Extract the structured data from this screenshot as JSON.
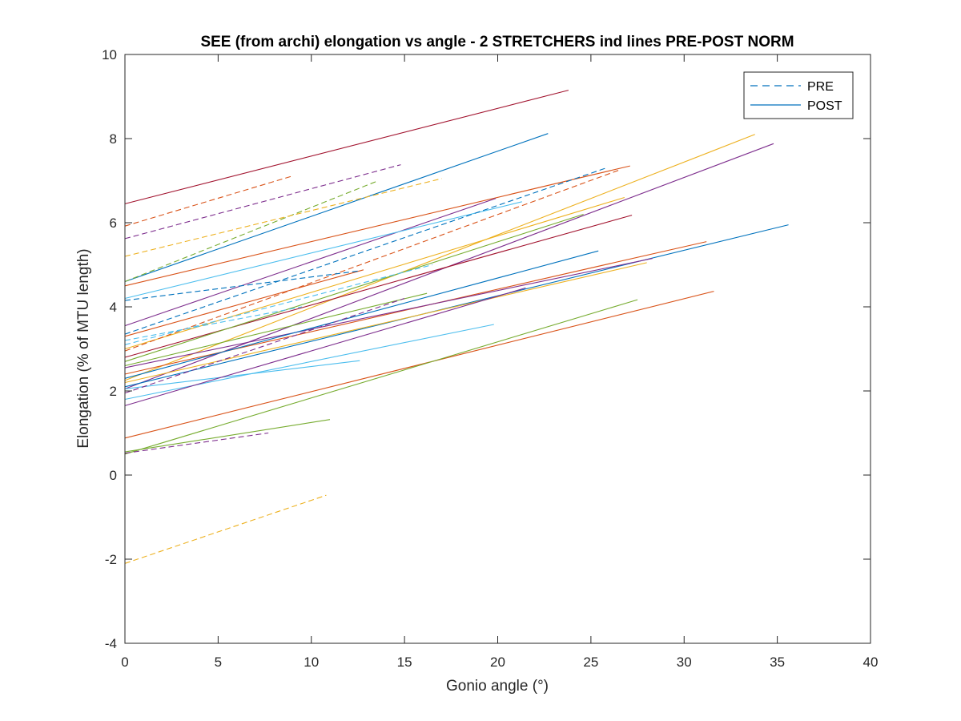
{
  "chart_data": {
    "type": "line",
    "title": "SEE (from archi) elongation vs angle - 2 STRETCHERS ind lines PRE-POST NORM",
    "xlabel": "Gonio angle (°)",
    "ylabel": "Elongation (% of MTU length)",
    "xlim": [
      0,
      40
    ],
    "ylim": [
      -4,
      10
    ],
    "xticks": [
      0,
      5,
      10,
      15,
      20,
      25,
      30,
      35,
      40
    ],
    "yticks": [
      -4,
      -2,
      0,
      2,
      4,
      6,
      8,
      10
    ],
    "grid": false,
    "legend": {
      "placement": "top-right",
      "entries": [
        {
          "label": "PRE",
          "style": "dashed",
          "color": "#0072bd"
        },
        {
          "label": "POST",
          "style": "solid",
          "color": "#0072bd"
        }
      ]
    },
    "series": [
      {
        "style": "solid",
        "color": "#a2142f",
        "x": [
          0,
          23.8
        ],
        "y": [
          6.45,
          9.15
        ]
      },
      {
        "style": "solid",
        "color": "#0072bd",
        "x": [
          0,
          22.7
        ],
        "y": [
          4.6,
          8.12
        ]
      },
      {
        "style": "solid",
        "color": "#edb120",
        "x": [
          0,
          33.8
        ],
        "y": [
          2.25,
          8.1
        ]
      },
      {
        "style": "solid",
        "color": "#7e2f8e",
        "x": [
          0,
          34.8
        ],
        "y": [
          2.05,
          7.88
        ]
      },
      {
        "style": "solid",
        "color": "#0072bd",
        "x": [
          0,
          35.6
        ],
        "y": [
          2.1,
          5.95
        ]
      },
      {
        "style": "solid",
        "color": "#d95319",
        "x": [
          0,
          31.6
        ],
        "y": [
          0.88,
          4.37
        ]
      },
      {
        "style": "solid",
        "color": "#77ac30",
        "x": [
          0,
          27.5
        ],
        "y": [
          0.5,
          4.17
        ]
      },
      {
        "style": "solid",
        "color": "#d95319",
        "x": [
          0,
          31.2
        ],
        "y": [
          2.4,
          5.55
        ]
      },
      {
        "style": "solid",
        "color": "#7e2f8e",
        "x": [
          0,
          28.3
        ],
        "y": [
          2.55,
          5.15
        ]
      },
      {
        "style": "solid",
        "color": "#edb120",
        "x": [
          0,
          28.0
        ],
        "y": [
          2.2,
          5.05
        ]
      },
      {
        "style": "solid",
        "color": "#d95319",
        "x": [
          0,
          27.1
        ],
        "y": [
          4.5,
          7.35
        ]
      },
      {
        "style": "solid",
        "color": "#a2142f",
        "x": [
          0,
          27.2
        ],
        "y": [
          2.8,
          6.18
        ]
      },
      {
        "style": "solid",
        "color": "#edb120",
        "x": [
          0,
          26.8
        ],
        "y": [
          3.0,
          6.6
        ]
      },
      {
        "style": "solid",
        "color": "#7e2f8e",
        "x": [
          0,
          19.9
        ],
        "y": [
          3.55,
          6.58
        ]
      },
      {
        "style": "solid",
        "color": "#0072bd",
        "x": [
          0,
          25.4
        ],
        "y": [
          2.3,
          5.33
        ]
      },
      {
        "style": "solid",
        "color": "#77ac30",
        "x": [
          0,
          24.6
        ],
        "y": [
          2.7,
          6.2
        ]
      },
      {
        "style": "solid",
        "color": "#4dbeee",
        "x": [
          0,
          21.3
        ],
        "y": [
          4.2,
          6.5
        ]
      },
      {
        "style": "solid",
        "color": "#4dbeee",
        "x": [
          0,
          19.8
        ],
        "y": [
          1.8,
          3.58
        ]
      },
      {
        "style": "solid",
        "color": "#4dbeee",
        "x": [
          0,
          12.6
        ],
        "y": [
          2.05,
          2.72
        ]
      },
      {
        "style": "solid",
        "color": "#77ac30",
        "x": [
          0,
          16.2
        ],
        "y": [
          2.6,
          4.32
        ]
      },
      {
        "style": "solid",
        "color": "#7e2f8e",
        "x": [
          0,
          21.5
        ],
        "y": [
          1.65,
          4.45
        ]
      },
      {
        "style": "solid",
        "color": "#77ac30",
        "x": [
          0,
          11.0
        ],
        "y": [
          0.55,
          1.32
        ]
      },
      {
        "style": "solid",
        "color": "#d95319",
        "x": [
          0,
          12.8
        ],
        "y": [
          3.3,
          4.88
        ]
      },
      {
        "style": "dashed",
        "color": "#0072bd",
        "x": [
          0,
          25.8
        ],
        "y": [
          3.35,
          7.3
        ]
      },
      {
        "style": "dashed",
        "color": "#d95319",
        "x": [
          0,
          26.5
        ],
        "y": [
          2.95,
          7.25
        ]
      },
      {
        "style": "dashed",
        "color": "#7e2f8e",
        "x": [
          0,
          14.8
        ],
        "y": [
          5.62,
          7.38
        ]
      },
      {
        "style": "dashed",
        "color": "#d95319",
        "x": [
          0,
          8.9
        ],
        "y": [
          5.92,
          7.1
        ]
      },
      {
        "style": "dashed",
        "color": "#77ac30",
        "x": [
          0,
          13.6
        ],
        "y": [
          4.6,
          7.0
        ]
      },
      {
        "style": "dashed",
        "color": "#edb120",
        "x": [
          0,
          17.0
        ],
        "y": [
          5.2,
          7.05
        ]
      },
      {
        "style": "dashed",
        "color": "#4dbeee",
        "x": [
          0,
          16.5
        ],
        "y": [
          3.1,
          5.0
        ]
      },
      {
        "style": "dashed",
        "color": "#0072bd",
        "x": [
          0,
          12.5
        ],
        "y": [
          4.15,
          4.85
        ]
      },
      {
        "style": "dashed",
        "color": "#7e2f8e",
        "x": [
          0,
          15.0
        ],
        "y": [
          1.95,
          4.2
        ]
      },
      {
        "style": "dashed",
        "color": "#edb120",
        "x": [
          0,
          10.8
        ],
        "y": [
          -2.1,
          -0.48
        ]
      },
      {
        "style": "dashed",
        "color": "#7e2f8e",
        "x": [
          0,
          7.7
        ],
        "y": [
          0.52,
          1.0
        ]
      },
      {
        "style": "dashed",
        "color": "#4dbeee",
        "x": [
          0,
          9.5
        ],
        "y": [
          3.2,
          4.0
        ]
      }
    ]
  }
}
